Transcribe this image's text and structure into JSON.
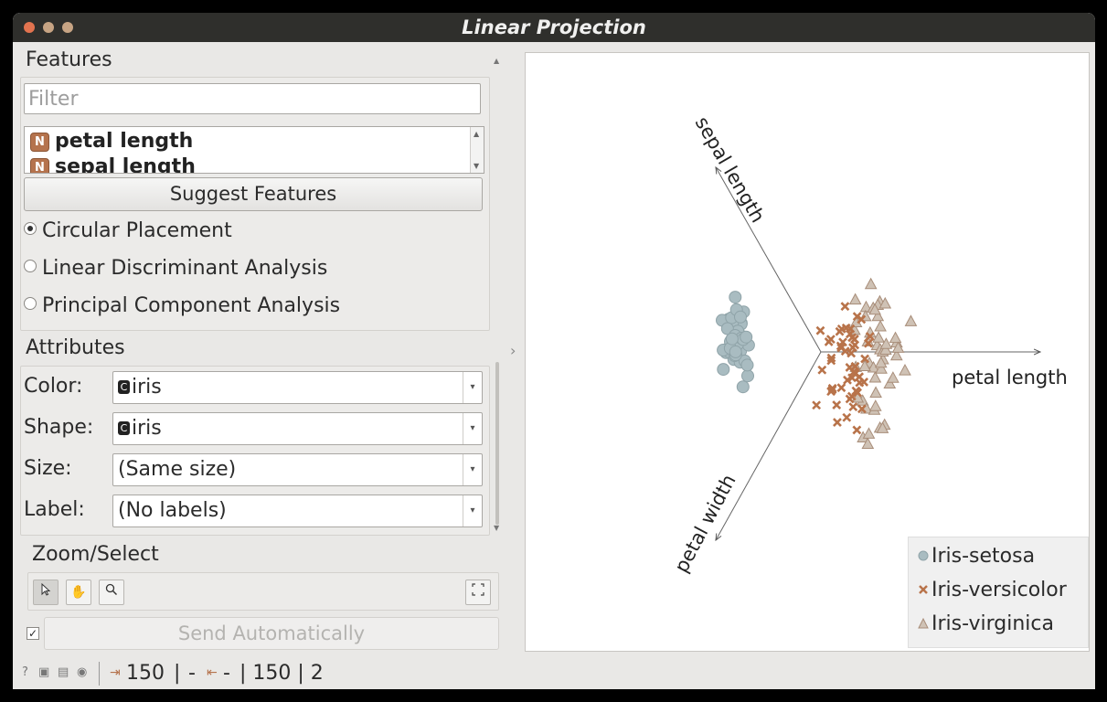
{
  "window": {
    "title": "Linear Projection"
  },
  "features": {
    "section_title": "Features",
    "filter_placeholder": "Filter",
    "items": [
      {
        "label": "petal length",
        "type_badge": "N"
      },
      {
        "label": "sepal length",
        "type_badge": "N"
      }
    ],
    "suggest_button": "Suggest Features",
    "placement_options": [
      {
        "label": "Circular Placement",
        "selected": true
      },
      {
        "label": "Linear Discriminant Analysis",
        "selected": false
      },
      {
        "label": "Principal Component Analysis",
        "selected": false
      }
    ]
  },
  "attributes": {
    "section_title": "Attributes",
    "color": {
      "label": "Color:",
      "value": "iris",
      "type_badge": "C"
    },
    "shape": {
      "label": "Shape:",
      "value": "iris",
      "type_badge": "C"
    },
    "size": {
      "label": "Size:",
      "value": "(Same size)"
    },
    "label": {
      "label": "Label:",
      "value": "(No labels)"
    }
  },
  "zoom_select": {
    "section_title": "Zoom/Select",
    "tools": [
      "pointer-icon",
      "hand-icon",
      "magnifier-icon",
      "fit-view-icon"
    ]
  },
  "send": {
    "label": "Send Automatically",
    "checked": true
  },
  "status": {
    "input_count": "150",
    "sep1": "|",
    "dash1": "-",
    "dash2": "-",
    "output_count": "| 150 | 2"
  },
  "plot": {
    "axes": [
      {
        "label": "sepal length"
      },
      {
        "label": "petal length"
      },
      {
        "label": "petal width"
      }
    ],
    "legend": [
      {
        "label": "Iris-setosa",
        "color": "#a9bcc1",
        "marker": "circle"
      },
      {
        "label": "Iris-versicolor",
        "color": "#b8734a",
        "marker": "cross"
      },
      {
        "label": "Iris-virginica",
        "color": "#cfc2b5",
        "marker": "triangle"
      }
    ]
  }
}
